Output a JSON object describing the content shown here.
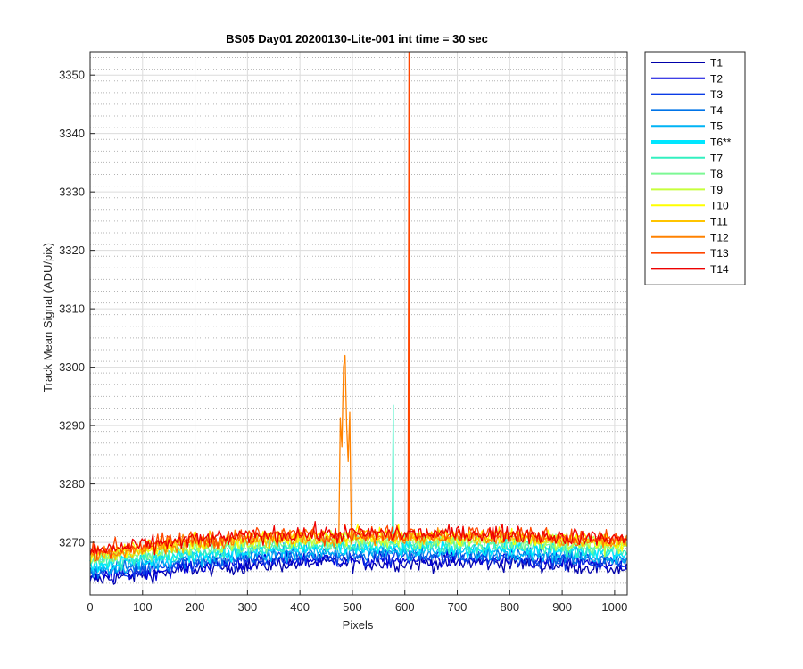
{
  "chart_data": {
    "type": "line",
    "title": "BS05 Day01 20200130-Lite-001 int time = 30 sec",
    "xlabel": "Pixels",
    "ylabel": "Track Mean Signal (ADU/pix)",
    "xlim": [
      0,
      1024
    ],
    "ylim": [
      3261,
      3354
    ],
    "x_ticks": [
      0,
      100,
      200,
      300,
      400,
      500,
      600,
      700,
      800,
      900,
      1000
    ],
    "y_ticks": [
      3270,
      3280,
      3290,
      3300,
      3310,
      3320,
      3330,
      3340,
      3350
    ],
    "grid": true,
    "minor_grid": true,
    "legend_position": "outside-right",
    "x_points": [
      0,
      100,
      200,
      300,
      400,
      500,
      600,
      700,
      800,
      900,
      1024
    ],
    "series": [
      {
        "name": "T1",
        "color": "#0000aa",
        "values": [
          3263.5,
          3264.5,
          3265.5,
          3266.0,
          3266.5,
          3266.5,
          3266.5,
          3266.5,
          3266.5,
          3266.0,
          3265.5
        ]
      },
      {
        "name": "T2",
        "color": "#0000dd",
        "values": [
          3264.0,
          3265.0,
          3266.0,
          3266.5,
          3267.0,
          3267.0,
          3267.0,
          3267.0,
          3267.0,
          3266.5,
          3266.0
        ]
      },
      {
        "name": "T3",
        "color": "#0a3ce6",
        "values": [
          3264.5,
          3265.5,
          3266.5,
          3267.0,
          3267.5,
          3267.5,
          3267.5,
          3267.5,
          3267.5,
          3267.0,
          3266.5
        ]
      },
      {
        "name": "T4",
        "color": "#0074e8",
        "values": [
          3265.0,
          3266.0,
          3267.0,
          3267.5,
          3268.0,
          3268.0,
          3268.0,
          3268.0,
          3268.0,
          3267.5,
          3267.0
        ]
      },
      {
        "name": "T5",
        "color": "#00b4f5",
        "values": [
          3265.5,
          3266.5,
          3267.5,
          3268.0,
          3268.5,
          3268.5,
          3268.5,
          3268.5,
          3268.5,
          3268.0,
          3267.5
        ]
      },
      {
        "name": "T6**",
        "color": "#00e6ff",
        "values": [
          3266.0,
          3267.0,
          3268.0,
          3268.5,
          3269.0,
          3269.0,
          3269.0,
          3269.0,
          3269.0,
          3268.5,
          3268.0
        ]
      },
      {
        "name": "T7",
        "color": "#33f0c0",
        "values": [
          3266.5,
          3267.5,
          3268.5,
          3269.0,
          3269.5,
          3269.5,
          3269.5,
          3269.5,
          3269.5,
          3269.0,
          3268.5
        ],
        "spikes": [
          {
            "x": 578,
            "y": 3293.5
          }
        ]
      },
      {
        "name": "T8",
        "color": "#7cf894",
        "values": [
          3267.0,
          3268.0,
          3269.0,
          3269.5,
          3270.0,
          3270.0,
          3270.0,
          3270.0,
          3270.0,
          3269.5,
          3269.0
        ]
      },
      {
        "name": "T9",
        "color": "#c6ff3c",
        "values": [
          3267.5,
          3268.5,
          3269.5,
          3270.0,
          3270.5,
          3270.5,
          3270.5,
          3270.5,
          3270.5,
          3270.0,
          3269.5
        ]
      },
      {
        "name": "T10",
        "color": "#ffff00",
        "values": [
          3268.0,
          3269.0,
          3270.0,
          3270.5,
          3271.0,
          3271.0,
          3271.0,
          3271.0,
          3271.0,
          3270.5,
          3270.0
        ]
      },
      {
        "name": "T11",
        "color": "#ffc400",
        "values": [
          3268.0,
          3269.0,
          3270.0,
          3270.5,
          3271.0,
          3271.0,
          3271.0,
          3271.0,
          3271.0,
          3270.5,
          3270.0
        ]
      },
      {
        "name": "T12",
        "color": "#ff8200",
        "values": [
          3268.0,
          3269.0,
          3270.0,
          3270.5,
          3271.0,
          3271.0,
          3271.0,
          3271.0,
          3271.0,
          3270.5,
          3270.0
        ],
        "bursts": [
          {
            "x_start": 476,
            "x_end": 496,
            "y_max": 3306
          }
        ]
      },
      {
        "name": "T13",
        "color": "#ff4600",
        "values": [
          3268.5,
          3269.5,
          3270.5,
          3271.0,
          3271.5,
          3271.5,
          3271.5,
          3271.5,
          3271.5,
          3271.0,
          3270.5
        ],
        "spikes": [
          {
            "x": 608,
            "y": 3354
          }
        ]
      },
      {
        "name": "T14",
        "color": "#ee0000",
        "values": [
          3268.5,
          3269.5,
          3270.5,
          3271.0,
          3271.5,
          3271.5,
          3271.5,
          3271.5,
          3271.5,
          3271.0,
          3270.5
        ]
      }
    ]
  }
}
